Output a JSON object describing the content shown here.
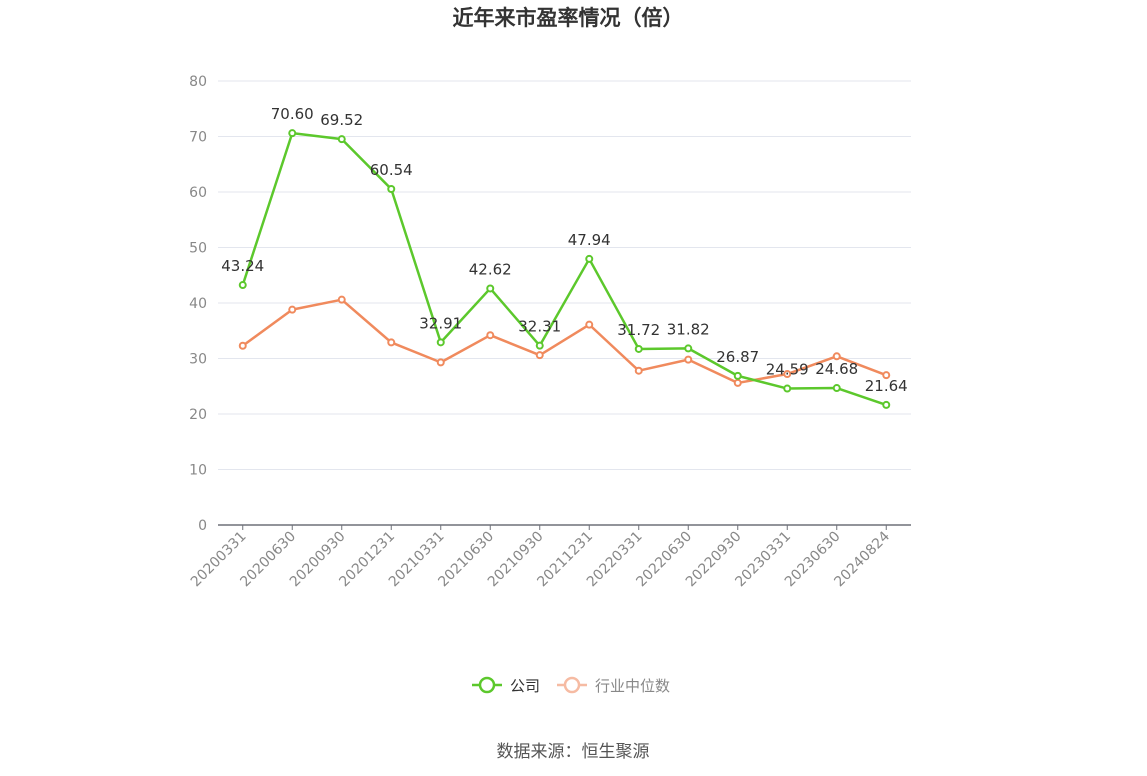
{
  "chart_data": {
    "type": "line",
    "title": "近年来市盈率情况（倍）",
    "categories": [
      "20200331",
      "20200630",
      "20200930",
      "20201231",
      "20210331",
      "20210630",
      "20210930",
      "20211231",
      "20220331",
      "20220630",
      "20220930",
      "20230331",
      "20230630",
      "20240824"
    ],
    "series": [
      {
        "name": "公司",
        "color": "#5cc82c",
        "values": [
          43.24,
          70.6,
          69.52,
          60.54,
          32.91,
          42.62,
          32.31,
          47.94,
          31.72,
          31.82,
          26.87,
          24.59,
          24.68,
          21.64
        ],
        "labels": [
          "43.24",
          "70.60",
          "69.52",
          "60.54",
          "32.91",
          "42.62",
          "32.31",
          "47.94",
          "31.72",
          "31.82",
          "26.87",
          "24.59",
          "24.68",
          "21.64"
        ]
      },
      {
        "name": "行业中位数",
        "color": "#f08a5d",
        "values": [
          32.3,
          38.8,
          40.6,
          32.9,
          29.3,
          34.2,
          30.6,
          36.1,
          27.8,
          29.8,
          25.6,
          27.2,
          30.4,
          27.0
        ]
      }
    ],
    "ylim": [
      0,
      80
    ],
    "yticks": [
      0,
      10,
      20,
      30,
      40,
      50,
      60,
      70,
      80
    ],
    "grid": true,
    "legend_position": "bottom-center",
    "source": "数据来源：恒生聚源"
  }
}
